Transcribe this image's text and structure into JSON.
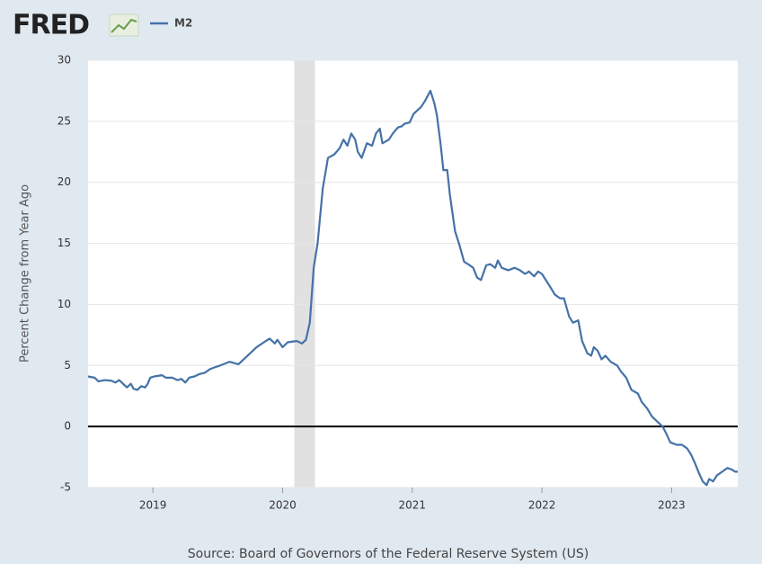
{
  "chart_data": {
    "type": "line",
    "logo": "FRED",
    "y_label": "Percent Change from Year Ago",
    "source": "Source: Board of Governors of the Federal Reserve System (US)",
    "xlim": [
      2018.5,
      2023.51
    ],
    "xticks": [
      2019,
      2020,
      2021,
      2022,
      2023
    ],
    "ylim": [
      -5,
      30
    ],
    "yticks": [
      -5,
      0,
      5,
      10,
      15,
      20,
      25,
      30
    ],
    "grid": true,
    "zero_line": 0,
    "shaded_periods": [
      [
        2020.09,
        2020.25
      ]
    ],
    "x": [
      2018.5,
      2018.55,
      2018.58,
      2018.63,
      2018.68,
      2018.71,
      2018.74,
      2018.77,
      2018.8,
      2018.83,
      2018.85,
      2018.88,
      2018.91,
      2018.94,
      2018.96,
      2018.98,
      2019.01,
      2019.07,
      2019.1,
      2019.15,
      2019.19,
      2019.22,
      2019.25,
      2019.28,
      2019.32,
      2019.36,
      2019.4,
      2019.44,
      2019.49,
      2019.52,
      2019.59,
      2019.66,
      2019.73,
      2019.8,
      2019.87,
      2019.9,
      2019.94,
      2019.96,
      2020.0,
      2020.04,
      2020.11,
      2020.15,
      2020.18,
      2020.21,
      2020.24,
      2020.27,
      2020.31,
      2020.35,
      2020.4,
      2020.44,
      2020.47,
      2020.5,
      2020.53,
      2020.56,
      2020.58,
      2020.61,
      2020.65,
      2020.69,
      2020.72,
      2020.75,
      2020.77,
      2020.82,
      2020.85,
      2020.89,
      2020.92,
      2020.94,
      2020.98,
      2021.01,
      2021.07,
      2021.1,
      2021.14,
      2021.17,
      2021.19,
      2021.22,
      2021.24,
      2021.27,
      2021.29,
      2021.33,
      2021.36,
      2021.4,
      2021.43,
      2021.47,
      2021.5,
      2021.53,
      2021.57,
      2021.6,
      2021.64,
      2021.66,
      2021.69,
      2021.74,
      2021.79,
      2021.83,
      2021.87,
      2021.9,
      2021.94,
      2021.97,
      2022.0,
      2022.06,
      2022.1,
      2022.14,
      2022.17,
      2022.21,
      2022.24,
      2022.28,
      2022.31,
      2022.35,
      2022.38,
      2022.4,
      2022.43,
      2022.46,
      2022.49,
      2022.53,
      2022.58,
      2022.61,
      2022.65,
      2022.69,
      2022.74,
      2022.77,
      2022.81,
      2022.85,
      2022.89,
      2022.93,
      2022.96,
      2022.99,
      2023.04,
      2023.08,
      2023.12,
      2023.15,
      2023.18,
      2023.21,
      2023.24,
      2023.27,
      2023.29,
      2023.32,
      2023.35,
      2023.39,
      2023.43,
      2023.46,
      2023.49,
      2023.51
    ],
    "series": [
      {
        "name": "M2",
        "color": "#4572a7",
        "values": [
          4.1,
          4.0,
          3.7,
          3.8,
          3.75,
          3.6,
          3.8,
          3.5,
          3.2,
          3.5,
          3.1,
          3.0,
          3.3,
          3.2,
          3.5,
          4.0,
          4.1,
          4.2,
          4.0,
          4.0,
          3.8,
          3.9,
          3.6,
          4.0,
          4.1,
          4.3,
          4.4,
          4.7,
          4.9,
          5.0,
          5.3,
          5.1,
          5.8,
          6.5,
          7.0,
          7.2,
          6.8,
          7.1,
          6.5,
          6.9,
          7.0,
          6.8,
          7.1,
          8.5,
          13.0,
          15.0,
          19.5,
          22.0,
          22.3,
          22.8,
          23.5,
          23.0,
          24.0,
          23.5,
          22.5,
          22.0,
          23.2,
          23.0,
          24.0,
          24.4,
          23.2,
          23.5,
          24.0,
          24.5,
          24.6,
          24.8,
          24.9,
          25.6,
          26.2,
          26.7,
          27.5,
          26.5,
          25.5,
          23.0,
          21.0,
          21.0,
          19.0,
          16.0,
          15.0,
          13.5,
          13.3,
          13.0,
          12.2,
          12.0,
          13.2,
          13.3,
          13.0,
          13.6,
          13.0,
          12.8,
          13.0,
          12.8,
          12.5,
          12.7,
          12.3,
          12.7,
          12.5,
          11.5,
          10.8,
          10.5,
          10.5,
          9.0,
          8.5,
          8.7,
          7.0,
          6.0,
          5.8,
          6.5,
          6.2,
          5.5,
          5.8,
          5.3,
          5.0,
          4.5,
          4.0,
          3.0,
          2.7,
          2.0,
          1.5,
          0.8,
          0.4,
          0.0,
          -0.6,
          -1.3,
          -1.5,
          -1.5,
          -1.8,
          -2.3,
          -3.0,
          -3.8,
          -4.5,
          -4.8,
          -4.3,
          -4.5,
          -4.0,
          -3.7,
          -3.4,
          -3.5,
          -3.7,
          -3.7
        ]
      }
    ]
  }
}
